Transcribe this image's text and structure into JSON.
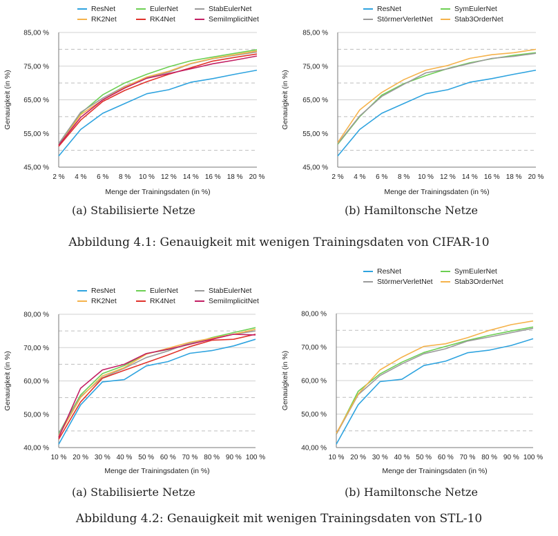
{
  "colors": {
    "ResNet": "#2ea3df",
    "EulerNet": "#6ccf52",
    "StabEulerNet": "#9a9a9a",
    "RK2Net": "#f5b24a",
    "RK4Net": "#e0322a",
    "SemiImplicitNet": "#c21e63",
    "SymEulerNet": "#6ccf52",
    "StörmerVerletNet": "#9a9a9a",
    "Stab3OrderNet": "#f5b24a"
  },
  "figures": [
    {
      "caption": "Abbildung 4.1: Genauigkeit mit wenigen Trainingsdaten von CIFAR-10"
    },
    {
      "caption": "Abbildung 4.2: Genauigkeit mit wenigen Trainingsdaten von STL-10"
    }
  ],
  "chart_data": [
    {
      "type": "line",
      "subcaption": "(a) Stabilisierte Netze",
      "xlabel": "Menge der Trainingsdaten (in %)",
      "ylabel": "Genauigkeit (in %)",
      "categories": [
        "2 %",
        "4 %",
        "6 %",
        "8 %",
        "10 %",
        "12 %",
        "14 %",
        "16 %",
        "18 %",
        "20 %"
      ],
      "ylim": [
        45,
        85
      ],
      "yticks": [
        45,
        55,
        65,
        75,
        85
      ],
      "yticklabels": [
        "45,00 %",
        "55,00 %",
        "65,00 %",
        "75,00 %",
        "85,00 %"
      ],
      "ygrid_dashed": [
        50,
        60,
        70,
        80
      ],
      "legend": [
        "ResNet",
        "EulerNet",
        "StabEulerNet",
        "RK2Net",
        "RK4Net",
        "SemiImplicitNet"
      ],
      "series": [
        {
          "name": "ResNet",
          "values": [
            48.3,
            56.2,
            61.0,
            63.9,
            66.8,
            68.0,
            70.2,
            71.3,
            72.6,
            73.8
          ]
        },
        {
          "name": "EulerNet",
          "values": [
            51.8,
            61.0,
            66.5,
            70.0,
            72.6,
            74.8,
            76.6,
            77.7,
            78.8,
            79.9
          ]
        },
        {
          "name": "StabEulerNet",
          "values": [
            52.0,
            61.3,
            65.5,
            69.0,
            71.6,
            73.2,
            75.7,
            77.2,
            78.2,
            79.2
          ]
        },
        {
          "name": "RK2Net",
          "values": [
            51.4,
            60.6,
            65.0,
            68.8,
            71.8,
            73.5,
            75.8,
            77.3,
            78.4,
            79.5
          ]
        },
        {
          "name": "RK4Net",
          "values": [
            51.2,
            59.0,
            64.5,
            67.8,
            70.4,
            72.6,
            74.5,
            76.5,
            77.6,
            78.6
          ]
        },
        {
          "name": "SemiImplicitNet",
          "values": [
            51.5,
            59.8,
            65.0,
            68.5,
            71.4,
            72.8,
            74.2,
            75.7,
            76.8,
            78.0
          ]
        }
      ]
    },
    {
      "type": "line",
      "subcaption": "(b) Hamiltonsche Netze",
      "xlabel": "Menge der Trainingsdaten (in %)",
      "ylabel": "Genauigkeit (in %)",
      "categories": [
        "2 %",
        "4 %",
        "6 %",
        "8 %",
        "10 %",
        "12 %",
        "14 %",
        "16 %",
        "18 %",
        "20 %"
      ],
      "ylim": [
        45,
        85
      ],
      "yticks": [
        45,
        55,
        65,
        75,
        85
      ],
      "yticklabels": [
        "45,00 %",
        "55,00 %",
        "65,00 %",
        "75,00 %",
        "85,00 %"
      ],
      "ygrid_dashed": [
        50,
        60,
        70,
        80
      ],
      "legend": [
        "ResNet",
        "SymEulerNet",
        "StörmerVerletNet",
        "Stab3OrderNet"
      ],
      "series": [
        {
          "name": "ResNet",
          "values": [
            48.3,
            56.2,
            61.0,
            63.9,
            66.8,
            68.0,
            70.2,
            71.3,
            72.6,
            73.8
          ]
        },
        {
          "name": "SymEulerNet",
          "values": [
            51.8,
            60.0,
            66.4,
            69.8,
            72.2,
            74.3,
            76.0,
            77.2,
            78.2,
            79.0
          ]
        },
        {
          "name": "StörmerVerletNet",
          "values": [
            52.0,
            60.2,
            66.0,
            69.6,
            73.0,
            74.2,
            75.8,
            77.3,
            77.9,
            78.8
          ]
        },
        {
          "name": "Stab3OrderNet",
          "values": [
            52.3,
            62.0,
            67.2,
            71.0,
            73.8,
            75.2,
            77.3,
            78.4,
            79.0,
            80.0
          ]
        }
      ]
    },
    {
      "type": "line",
      "subcaption": "(a) Stabilisierte Netze",
      "xlabel": "Menge der Trainingsdaten (in %)",
      "ylabel": "Genauigkeit (in %)",
      "categories": [
        "10 %",
        "20 %",
        "30 %",
        "40 %",
        "50 %",
        "60 %",
        "70 %",
        "80 %",
        "90 %",
        "100 %"
      ],
      "ylim": [
        40,
        80
      ],
      "yticks": [
        40,
        50,
        60,
        70,
        80
      ],
      "yticklabels": [
        "40,00 %",
        "50,00 %",
        "60,00 %",
        "70,00 %",
        "80,00 %"
      ],
      "ygrid_dashed": [
        45,
        55,
        65,
        75
      ],
      "legend": [
        "ResNet",
        "EulerNet",
        "StabEulerNet",
        "RK2Net",
        "RK4Net",
        "SemiImplicitNet"
      ],
      "series": [
        {
          "name": "ResNet",
          "values": [
            41.0,
            52.8,
            59.7,
            60.4,
            64.5,
            65.8,
            68.3,
            69.1,
            70.5,
            72.5
          ]
        },
        {
          "name": "EulerNet",
          "values": [
            44.2,
            55.8,
            62.2,
            64.6,
            68.2,
            69.4,
            71.0,
            73.0,
            74.5,
            76.0
          ]
        },
        {
          "name": "StabEulerNet",
          "values": [
            44.0,
            55.3,
            61.0,
            63.8,
            67.0,
            69.0,
            71.4,
            72.6,
            74.0,
            75.0
          ]
        },
        {
          "name": "RK2Net",
          "values": [
            43.5,
            55.0,
            61.5,
            64.0,
            68.0,
            69.8,
            71.6,
            72.8,
            74.0,
            75.5
          ]
        },
        {
          "name": "RK4Net",
          "values": [
            42.5,
            53.7,
            60.8,
            63.2,
            65.5,
            67.8,
            70.3,
            72.2,
            72.5,
            74.0
          ]
        },
        {
          "name": "SemiImplicitNet",
          "values": [
            43.0,
            57.8,
            63.3,
            65.0,
            68.2,
            69.5,
            71.0,
            72.5,
            74.0,
            73.8
          ]
        }
      ]
    },
    {
      "type": "line",
      "subcaption": "(b) Hamiltonsche Netze",
      "xlabel": "Menge der Trainingsdaten (in %)",
      "ylabel": "Genauigkeit (in %)",
      "categories": [
        "10 %",
        "20 %",
        "30 %",
        "40 %",
        "50 %",
        "60 %",
        "70 %",
        "80 %",
        "90 %",
        "100 %"
      ],
      "ylim": [
        40,
        80
      ],
      "yticks": [
        40,
        50,
        60,
        70,
        80
      ],
      "yticklabels": [
        "40,00 %",
        "50,00 %",
        "60,00 %",
        "70,00 %",
        "80,00 %"
      ],
      "ygrid_dashed": [
        45,
        55,
        65,
        75
      ],
      "legend": [
        "ResNet",
        "SymEulerNet",
        "StörmerVerletNet",
        "Stab3OrderNet"
      ],
      "series": [
        {
          "name": "ResNet",
          "values": [
            41.0,
            52.8,
            59.7,
            60.4,
            64.5,
            65.8,
            68.3,
            69.1,
            70.5,
            72.5
          ]
        },
        {
          "name": "SymEulerNet",
          "values": [
            44.0,
            56.8,
            62.0,
            65.5,
            68.4,
            70.2,
            72.0,
            73.5,
            74.8,
            76.0
          ]
        },
        {
          "name": "StörmerVerletNet",
          "values": [
            44.0,
            55.8,
            61.5,
            65.0,
            68.0,
            69.5,
            71.8,
            73.0,
            74.3,
            75.6
          ]
        },
        {
          "name": "Stab3OrderNet",
          "values": [
            44.3,
            56.0,
            63.2,
            67.0,
            70.2,
            71.0,
            72.8,
            75.0,
            76.7,
            77.8
          ]
        }
      ]
    }
  ]
}
